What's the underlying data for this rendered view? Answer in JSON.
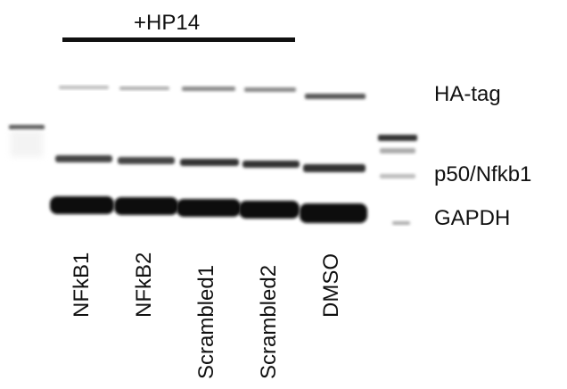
{
  "treatment_label": "+HP14",
  "band_labels": {
    "ha_tag": "HA-tag",
    "p50": "p50/Nfkb1",
    "gapdh": "GAPDH"
  },
  "lanes": [
    {
      "label": "NFkB1"
    },
    {
      "label": "NFkB2"
    },
    {
      "label": "Scrambled1"
    },
    {
      "label": "Scrambled2"
    },
    {
      "label": "DMSO"
    }
  ],
  "colors": {
    "band": "#111111",
    "background": "#ffffff"
  }
}
